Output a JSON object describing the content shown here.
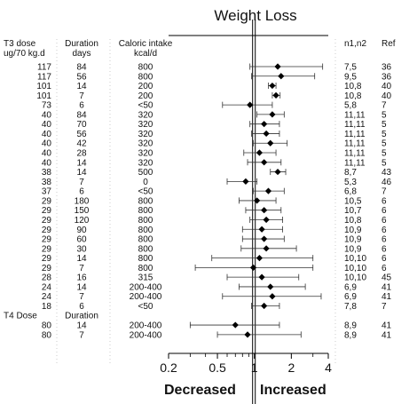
{
  "chart_data": {
    "type": "forest",
    "title": "Weight Loss",
    "header": {
      "dose_label": "T3 dose",
      "dose_unit": "ug/70 kg.d",
      "duration_label": "Duration",
      "duration_unit": "days",
      "intake_label": "Caloric intake",
      "intake_unit": "kcal/d",
      "n_label": "n1,n2",
      "ref_label": "Ref"
    },
    "section2": {
      "dose_label": "T4 Dose",
      "duration_label": "Duration"
    },
    "xscale": "log",
    "xlim": [
      0.2,
      4
    ],
    "xticks": [
      "0.2",
      "0.5",
      "1",
      "2",
      "4"
    ],
    "minor_ticks": [
      0.3,
      0.4,
      0.6,
      0.7,
      0.8,
      0.9,
      3
    ],
    "reference_line": 1,
    "footer_left": "Decreased",
    "footer_right": "Increased",
    "rows": [
      {
        "dose": "117",
        "duration": "84",
        "intake": "800",
        "est": 1.55,
        "lo": 0.92,
        "hi": 3.6,
        "n": "7,5",
        "ref": "36"
      },
      {
        "dose": "117",
        "duration": "56",
        "intake": "800",
        "est": 1.65,
        "lo": 0.95,
        "hi": 3.1,
        "n": "9,5",
        "ref": "36"
      },
      {
        "dose": "101",
        "duration": "14",
        "intake": "200",
        "est": 1.4,
        "lo": 1.3,
        "hi": 1.5,
        "n": "10,8",
        "ref": "40"
      },
      {
        "dose": "101",
        "duration": "7",
        "intake": "200",
        "est": 1.5,
        "lo": 1.4,
        "hi": 1.62,
        "n": "10,8",
        "ref": "40"
      },
      {
        "dose": "73",
        "duration": "6",
        "intake": "<50",
        "est": 0.92,
        "lo": 0.55,
        "hi": 1.4,
        "n": "5,8",
        "ref": "7"
      },
      {
        "dose": "40",
        "duration": "84",
        "intake": "320",
        "est": 1.4,
        "lo": 1.05,
        "hi": 1.75,
        "n": "11,11",
        "ref": "5"
      },
      {
        "dose": "40",
        "duration": "70",
        "intake": "320",
        "est": 1.2,
        "lo": 0.92,
        "hi": 1.6,
        "n": "11,11",
        "ref": "5"
      },
      {
        "dose": "40",
        "duration": "56",
        "intake": "320",
        "est": 1.25,
        "lo": 0.95,
        "hi": 1.6,
        "n": "11,11",
        "ref": "5"
      },
      {
        "dose": "40",
        "duration": "42",
        "intake": "320",
        "est": 1.35,
        "lo": 0.98,
        "hi": 1.85,
        "n": "11,11",
        "ref": "5"
      },
      {
        "dose": "40",
        "duration": "28",
        "intake": "320",
        "est": 1.1,
        "lo": 0.82,
        "hi": 1.5,
        "n": "11,11",
        "ref": "5"
      },
      {
        "dose": "40",
        "duration": "14",
        "intake": "320",
        "est": 1.2,
        "lo": 0.88,
        "hi": 1.65,
        "n": "11,11",
        "ref": "5"
      },
      {
        "dose": "38",
        "duration": "14",
        "intake": "500",
        "est": 1.55,
        "lo": 1.35,
        "hi": 1.8,
        "n": "8,7",
        "ref": "43"
      },
      {
        "dose": "38",
        "duration": "7",
        "intake": "0",
        "est": 0.85,
        "lo": 0.6,
        "hi": 1.05,
        "n": "5,3",
        "ref": "46"
      },
      {
        "dose": "37",
        "duration": "6",
        "intake": "<50",
        "est": 1.3,
        "lo": 0.98,
        "hi": 1.75,
        "n": "6,8",
        "ref": "7"
      },
      {
        "dose": "29",
        "duration": "180",
        "intake": "800",
        "est": 1.05,
        "lo": 0.75,
        "hi": 1.5,
        "n": "10,5",
        "ref": "6"
      },
      {
        "dose": "29",
        "duration": "150",
        "intake": "800",
        "est": 1.2,
        "lo": 0.85,
        "hi": 1.65,
        "n": "10,7",
        "ref": "6"
      },
      {
        "dose": "29",
        "duration": "120",
        "intake": "800",
        "est": 1.25,
        "lo": 0.92,
        "hi": 1.7,
        "n": "10,8",
        "ref": "6"
      },
      {
        "dose": "29",
        "duration": "90",
        "intake": "800",
        "est": 1.15,
        "lo": 0.8,
        "hi": 1.7,
        "n": "10,9",
        "ref": "6"
      },
      {
        "dose": "29",
        "duration": "60",
        "intake": "800",
        "est": 1.2,
        "lo": 0.8,
        "hi": 1.75,
        "n": "10,9",
        "ref": "6"
      },
      {
        "dose": "29",
        "duration": "30",
        "intake": "800",
        "est": 1.25,
        "lo": 0.78,
        "hi": 2.2,
        "n": "10,9",
        "ref": "6"
      },
      {
        "dose": "29",
        "duration": "14",
        "intake": "800",
        "est": 1.1,
        "lo": 0.45,
        "hi": 3.0,
        "n": "10,10",
        "ref": "6"
      },
      {
        "dose": "29",
        "duration": "7",
        "intake": "800",
        "est": 0.98,
        "lo": 0.33,
        "hi": 3.0,
        "n": "10,10",
        "ref": "6"
      },
      {
        "dose": "28",
        "duration": "16",
        "intake": "315",
        "est": 1.15,
        "lo": 0.6,
        "hi": 2.3,
        "n": "10,10",
        "ref": "45"
      },
      {
        "dose": "24",
        "duration": "14",
        "intake": "200-400",
        "est": 1.35,
        "lo": 0.75,
        "hi": 2.6,
        "n": "6,9",
        "ref": "41"
      },
      {
        "dose": "24",
        "duration": "7",
        "intake": "200-400",
        "est": 1.4,
        "lo": 0.55,
        "hi": 3.5,
        "n": "6,9",
        "ref": "41"
      },
      {
        "dose": "18",
        "duration": "6",
        "intake": "<50",
        "est": 1.2,
        "lo": 0.95,
        "hi": 1.6,
        "n": "7,8",
        "ref": "7"
      },
      {
        "section": true
      },
      {
        "dose": "80",
        "duration": "14",
        "intake": "200-400",
        "est": 0.7,
        "lo": 0.3,
        "hi": 1.6,
        "n": "8,9",
        "ref": "41"
      },
      {
        "dose": "80",
        "duration": "7",
        "intake": "200-400",
        "est": 0.88,
        "lo": 0.5,
        "hi": 2.4,
        "n": "8,9",
        "ref": "41"
      }
    ]
  }
}
